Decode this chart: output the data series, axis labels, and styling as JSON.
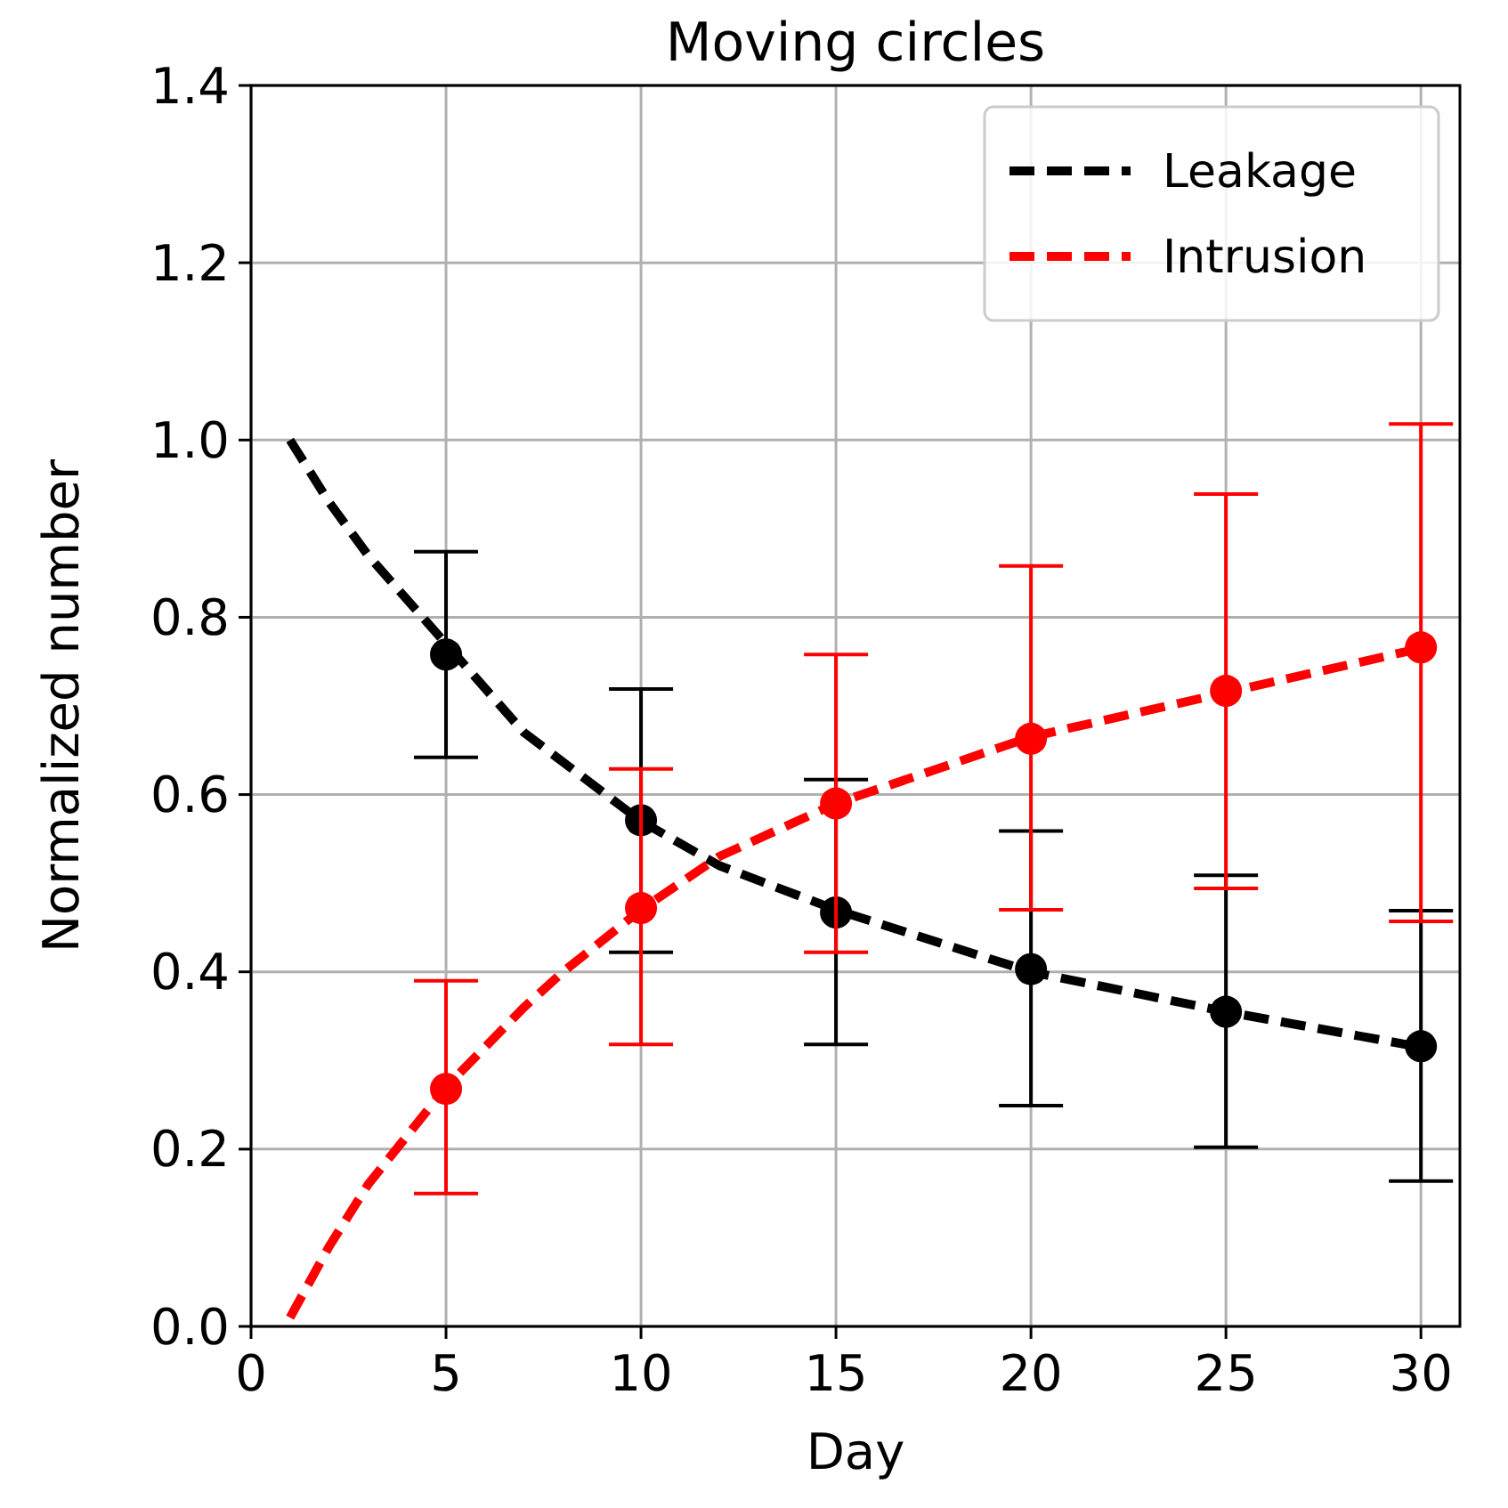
{
  "chart_data": {
    "type": "scatter",
    "title": "Moving circles",
    "xlabel": "Day",
    "ylabel": "Normalized number",
    "xlim": [
      0,
      31
    ],
    "ylim": [
      0,
      1.4
    ],
    "xticks": [
      0,
      5,
      10,
      15,
      20,
      25,
      30
    ],
    "yticks": [
      {
        "value": 0,
        "label": "0.0"
      },
      {
        "value": 0.2,
        "label": "0.2"
      },
      {
        "value": 0.4,
        "label": "0.4"
      },
      {
        "value": 0.6,
        "label": "0.6"
      },
      {
        "value": 0.8,
        "label": "0.8"
      },
      {
        "value": 1,
        "label": "1.0"
      },
      {
        "value": 1.2,
        "label": "1.2"
      },
      {
        "value": 1.4,
        "label": "1.4"
      }
    ],
    "grid": true,
    "legend": "top right",
    "series": [
      {
        "name": "Leakage",
        "type": "line",
        "line_style": "dashed",
        "marker": "none",
        "color": "#000000",
        "x": [
          1,
          2,
          3,
          5,
          7,
          10,
          12,
          15,
          20,
          25,
          30
        ],
        "values": [
          1.0,
          0.93,
          0.87,
          0.77,
          0.67,
          0.57,
          0.52,
          0.47,
          0.4,
          0.355,
          0.315
        ]
      },
      {
        "name": "Intrusion",
        "type": "line",
        "line_style": "dashed",
        "marker": "none",
        "color": "#ff0000",
        "x": [
          1,
          2,
          3,
          5,
          7,
          8,
          10,
          12,
          15,
          20,
          25,
          30
        ],
        "values": [
          0.01,
          0.09,
          0.16,
          0.27,
          0.36,
          0.4,
          0.47,
          0.53,
          0.59,
          0.665,
          0.715,
          0.765
        ]
      },
      {
        "marker": "circle",
        "color": "#000000",
        "x": [
          5,
          10,
          15,
          20,
          25,
          30
        ],
        "values": [
          0.758,
          0.571,
          0.467,
          0.403,
          0.355,
          0.316
        ],
        "errors": [
          [
            0.642,
            0.874
          ],
          [
            0.422,
            0.719
          ],
          [
            0.318,
            0.617
          ],
          [
            0.249,
            0.559
          ],
          [
            0.202,
            0.509
          ],
          [
            0.164,
            0.469
          ]
        ]
      },
      {
        "marker": "circle",
        "color": "#ff0000",
        "x": [
          5,
          10,
          15,
          20,
          25,
          30
        ],
        "values": [
          0.268,
          0.472,
          0.59,
          0.663,
          0.717,
          0.766
        ],
        "errors": [
          [
            0.15,
            0.39
          ],
          [
            0.318,
            0.629
          ],
          [
            0.422,
            0.758
          ],
          [
            0.47,
            0.858
          ],
          [
            0.494,
            0.939
          ],
          [
            0.457,
            1.018
          ]
        ]
      }
    ]
  }
}
